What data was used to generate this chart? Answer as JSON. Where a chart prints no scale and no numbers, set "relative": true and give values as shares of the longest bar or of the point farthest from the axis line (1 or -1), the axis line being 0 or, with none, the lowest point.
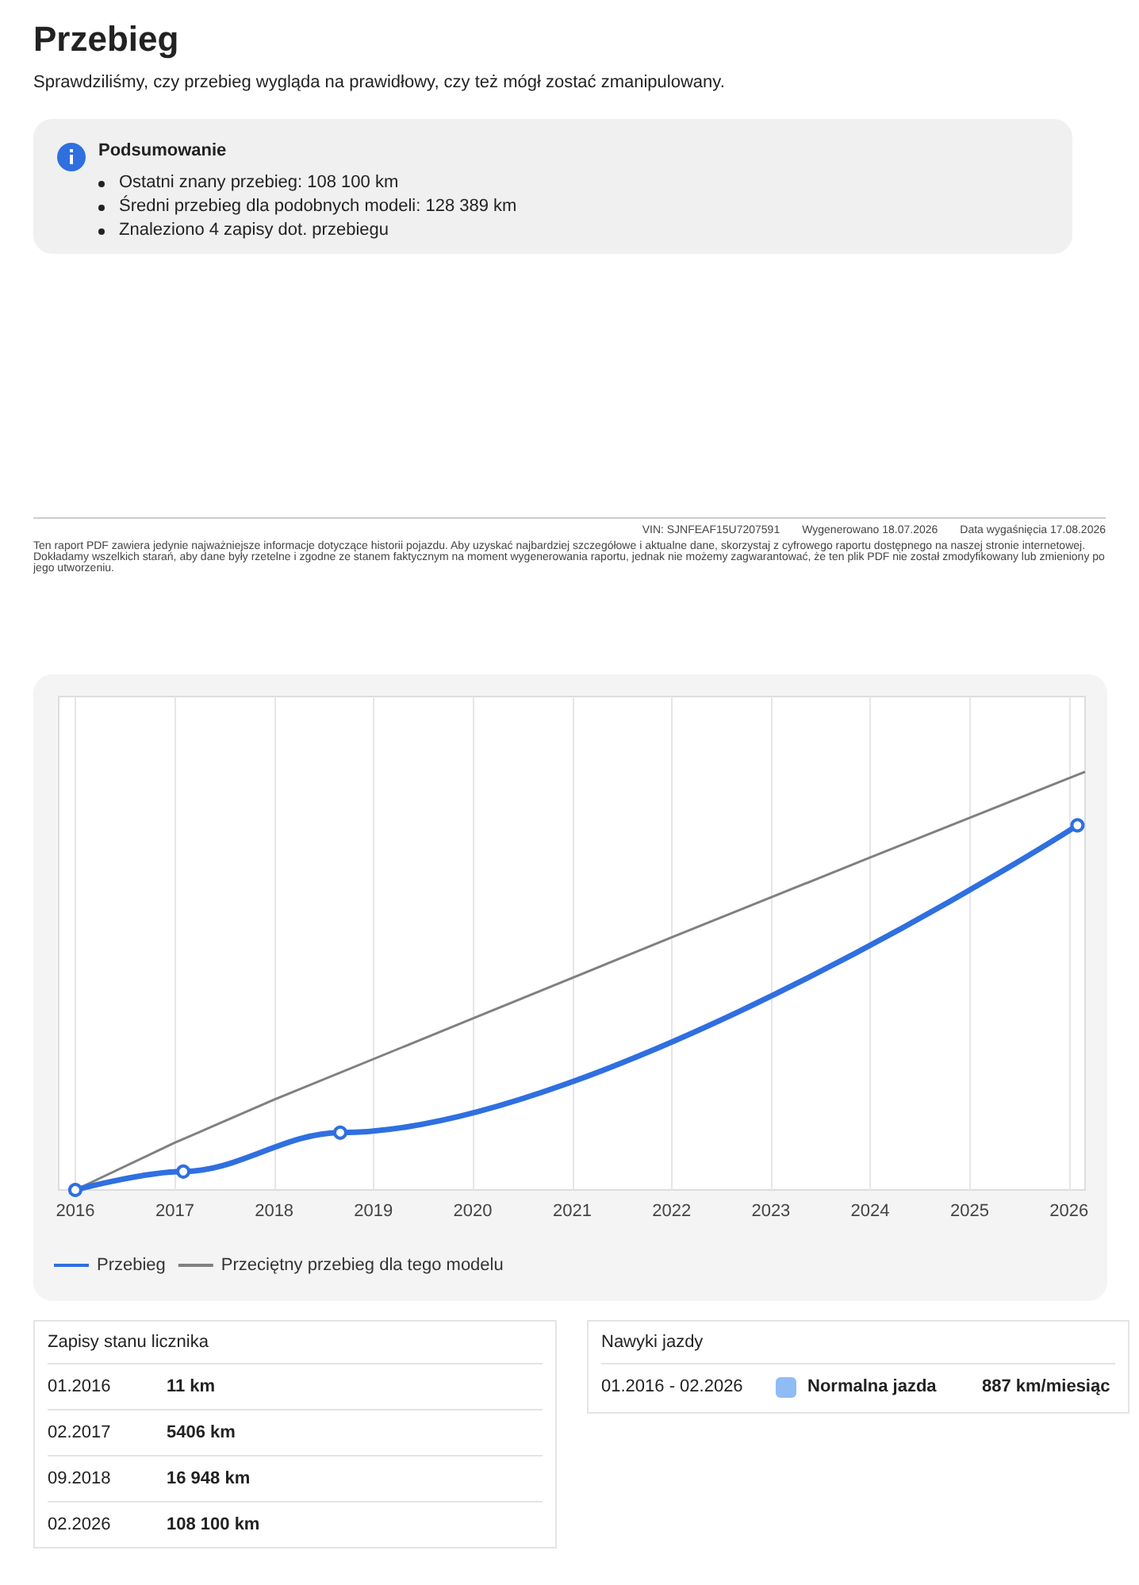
{
  "chart_data": {
    "type": "line",
    "title": "Przebieg",
    "subtitle": "Sprawdziliśmy, czy przebieg wygląda na prawidłowy, czy też mógł zostać zmanipulowany.",
    "annotations": [
      "Podsumowanie",
      "Ostatni znany przebieg: 108 100 km",
      "Średni przebieg dla podobnych modeli: 128 389 km",
      "Znaleziono 4 zapisy dot. przebiegu",
      "VIN: SJNFEAF15U7207591",
      "Wygenerowano 18.07.2026",
      "Data wygaśnięcia 17.08.2026",
      "Ten raport PDF zawiera jedynie najważniejsze informacje dotyczące historii pojazdu. Aby uzyskać najbardziej szczegółowe i aktualne dane, skorzystaj z cyfrowego raportu dostępnego na naszej stronie internetowej. Dokładamy wszelkich starań, aby dane były rzetelne i zgodne ze stanem faktycznym na moment wygenerowania raportu, jednak nie możemy zagwarantować, że ten plik PDF nie został zmodyfikowany lub zmieniony po jego utworzeniu.",
      "Zapisy stanu licznika",
      "Nawyki jazdy",
      "01.2016 - 02.2026",
      "Normalna jazda",
      "887 km/miesiąc",
      "01.2016",
      "11 km",
      "02.2017",
      "5406 km",
      "09.2018",
      "16 948 km",
      "02.2026",
      "108 100 km"
    ],
    "relative": true,
    "xlim": [
      "2015-11",
      "2026-03"
    ],
    "xticks": [
      "2016",
      "2017",
      "2018",
      "2019",
      "2020",
      "2021",
      "2022",
      "2023",
      "2024",
      "2025",
      "2026"
    ],
    "grid": "x",
    "legend": "bottom",
    "series": [
      {
        "name": "Przebieg",
        "color": "#2f6fe0",
        "marker": "circle",
        "x": [
          "2016-01",
          "2017-02",
          "2018-09",
          "2026-02"
        ],
        "values": [
          0,
          0.044,
          0.137,
          0.872
        ]
      },
      {
        "name": "Przeciętny przebieg dla tego modelu",
        "color": "#808080",
        "marker": "none",
        "x": [
          "2016-01",
          "2017-01",
          "2018-01",
          "2020-01",
          "2022-01",
          "2024-01",
          "2026-03"
        ],
        "values": [
          0,
          0.113,
          0.216,
          0.41,
          0.604,
          0.795,
          1
        ]
      }
    ]
  }
}
